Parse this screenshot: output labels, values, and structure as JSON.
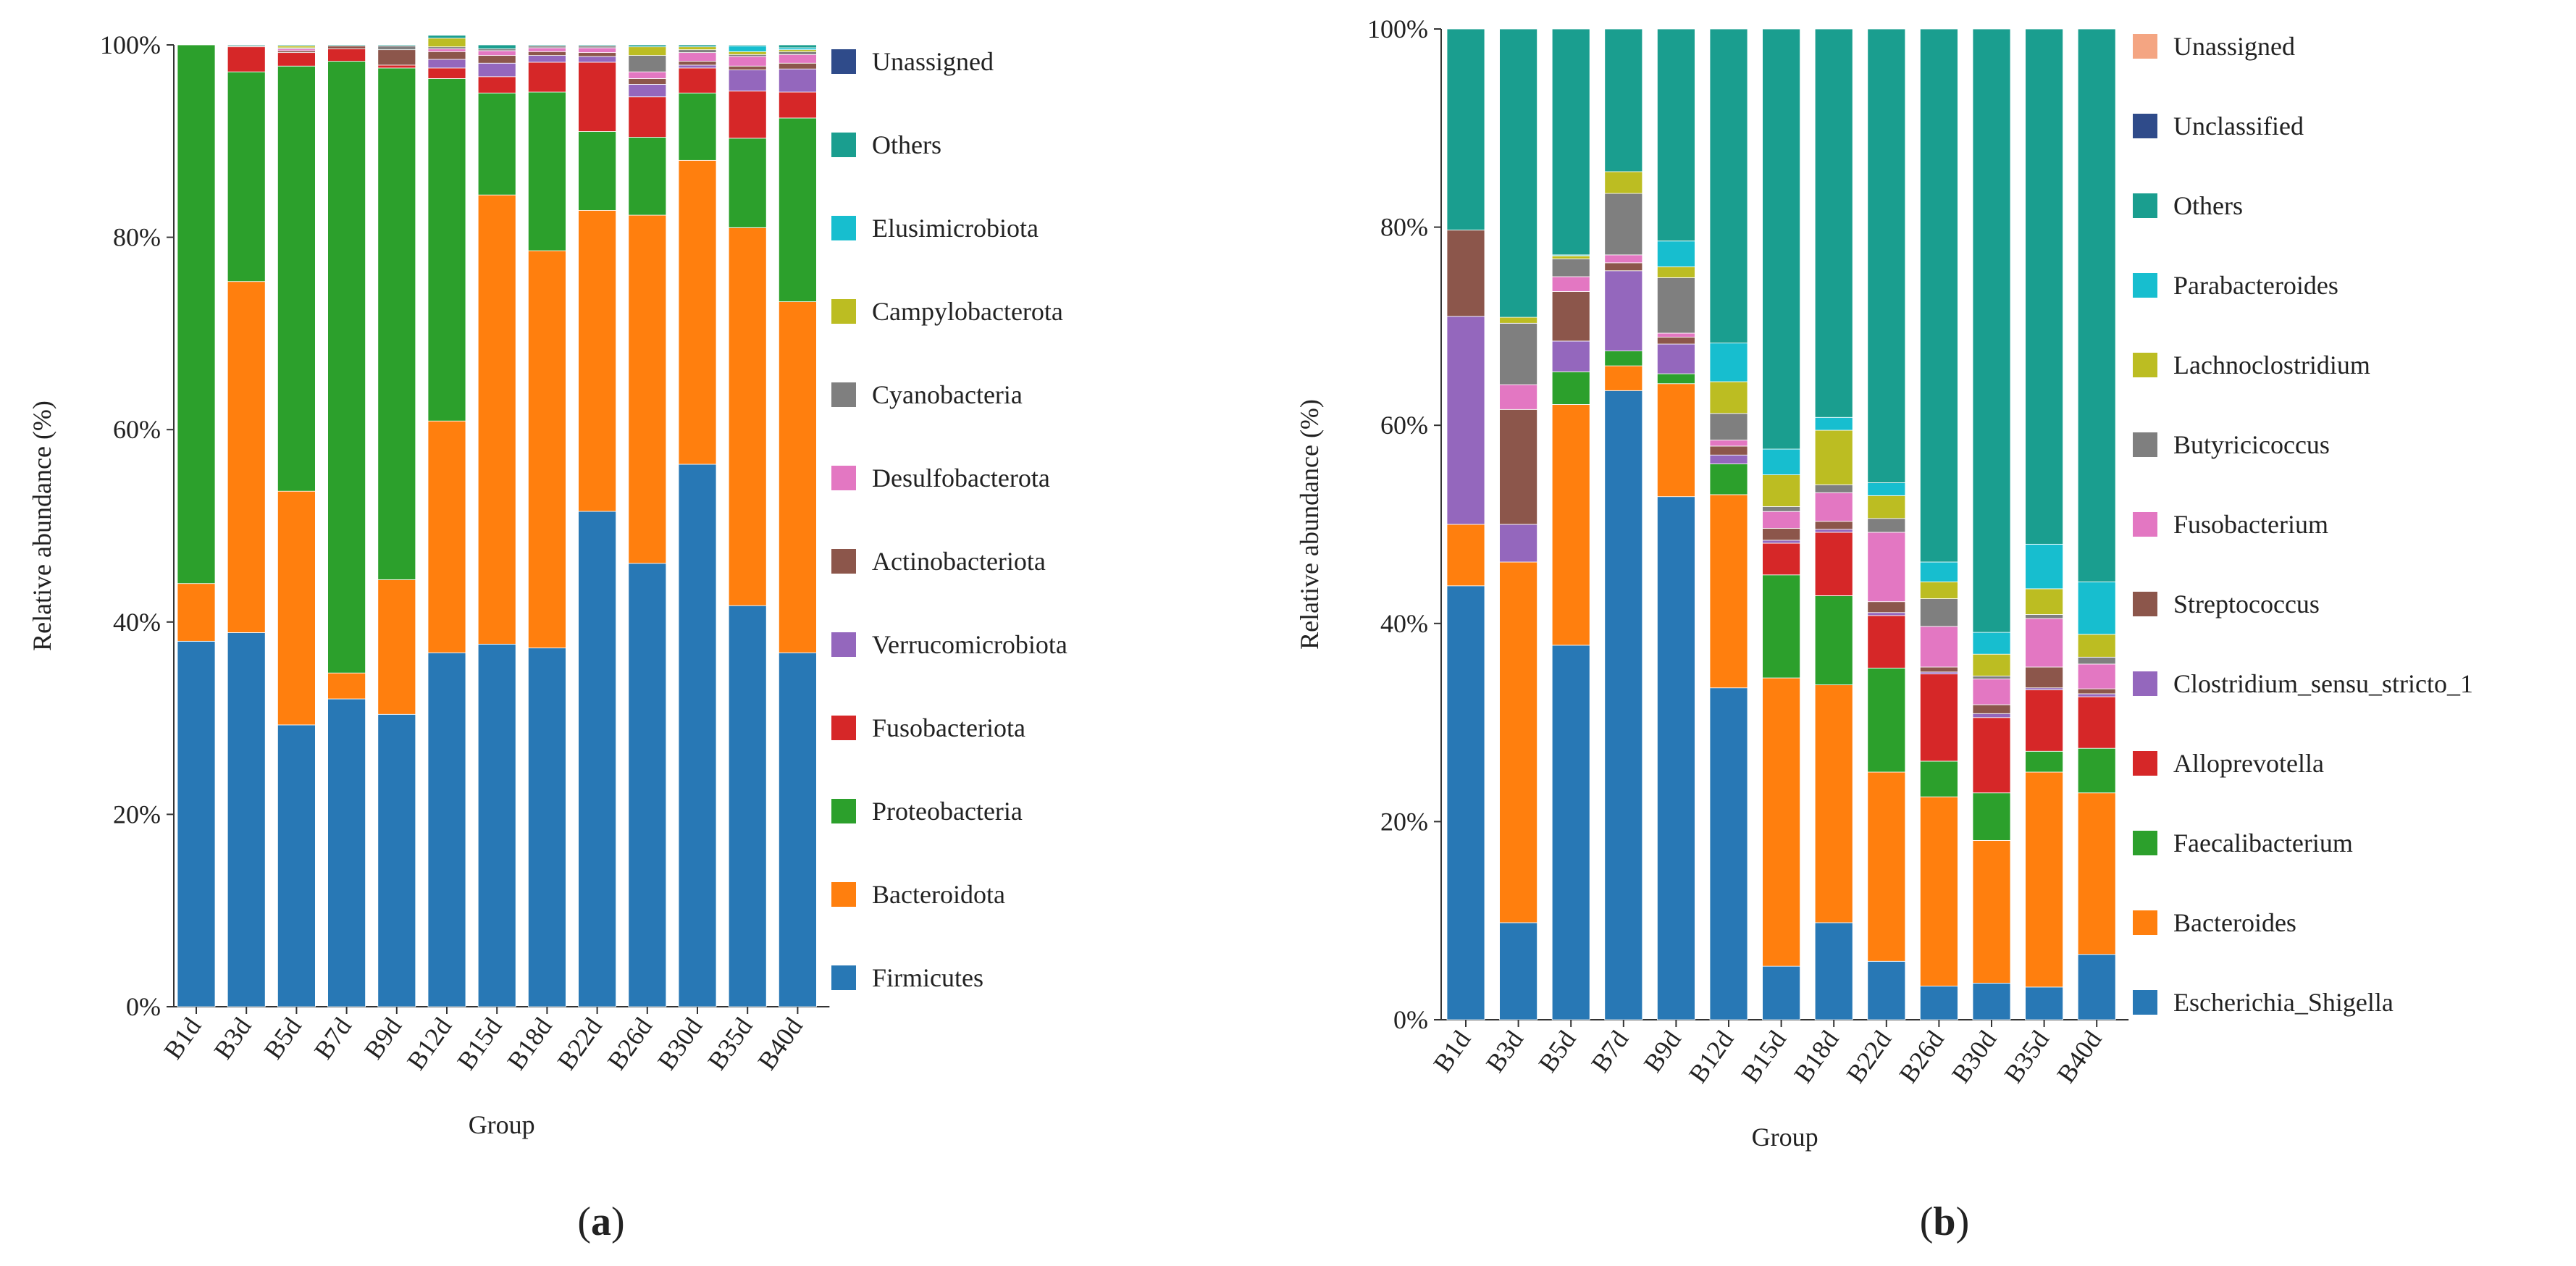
{
  "chart_data": [
    {
      "type": "bar",
      "stacked": true,
      "panel_label": "(a)",
      "panel_letter": "a",
      "xlabel": "Group",
      "ylabel": "Relative abundance (%)",
      "ylim": [
        0,
        100
      ],
      "yticks": [
        "0%",
        "20%",
        "40%",
        "60%",
        "80%",
        "100%"
      ],
      "categories": [
        "B1d",
        "B3d",
        "B5d",
        "B7d",
        "B9d",
        "B12d",
        "B15d",
        "B18d",
        "B22d",
        "B26d",
        "B30d",
        "B35d",
        "B40d"
      ],
      "series": [
        {
          "name": "Firmicutes",
          "color": "#2878b5",
          "values": [
            38,
            38.9,
            29.3,
            32,
            30.4,
            36.8,
            37.7,
            37.3,
            51.5,
            46.1,
            56.4,
            41.7,
            36.8
          ]
        },
        {
          "name": "Bacteroidota",
          "color": "#ff7f0e",
          "values": [
            6,
            36.5,
            24.3,
            2.7,
            14,
            24.1,
            46.7,
            41.3,
            31.3,
            36.2,
            31.6,
            39.3,
            36.5
          ]
        },
        {
          "name": "Proteobacteria",
          "color": "#2ca02c",
          "values": [
            56,
            21.8,
            44.2,
            63.6,
            53.2,
            35.6,
            10.6,
            16.5,
            8.2,
            8.1,
            7,
            9.3,
            19.1
          ]
        },
        {
          "name": "Fusobacteriota",
          "color": "#d62728",
          "values": [
            0,
            2.6,
            1.4,
            1.3,
            0.3,
            1.1,
            1.7,
            3.1,
            7.2,
            4.2,
            2.6,
            4.9,
            2.7
          ]
        },
        {
          "name": "Verrucomicrobiota",
          "color": "#9467bd",
          "values": [
            0,
            0,
            0,
            0,
            0,
            0.9,
            1.4,
            0.7,
            0.6,
            1.3,
            0.3,
            2.2,
            2.4
          ]
        },
        {
          "name": "Actinobacteriota",
          "color": "#8c564b",
          "values": [
            0,
            0.1,
            0.2,
            0.3,
            1.6,
            0.8,
            0.8,
            0.4,
            0.4,
            0.6,
            0.4,
            0.4,
            0.6
          ]
        },
        {
          "name": "Desulfobacterota",
          "color": "#e377c2",
          "values": [
            0,
            0,
            0.2,
            0,
            0,
            0.3,
            0.5,
            0.4,
            0.5,
            0.7,
            0.9,
            1,
            0.9
          ]
        },
        {
          "name": "Cyanobacteria",
          "color": "#7f7f7f",
          "values": [
            0,
            0,
            0.1,
            0,
            0.4,
            0.2,
            0.2,
            0.2,
            0.2,
            1.7,
            0.3,
            0.2,
            0.3
          ]
        },
        {
          "name": "Campylobacterota",
          "color": "#bcbd22",
          "values": [
            0,
            0,
            0.2,
            0,
            0,
            0.9,
            0,
            0,
            0,
            0.9,
            0.3,
            0.3,
            0.2
          ]
        },
        {
          "name": "Elusimicrobiota",
          "color": "#17becf",
          "values": [
            0,
            0,
            0,
            0,
            0,
            0,
            0,
            0,
            0,
            0,
            0,
            0.6,
            0.2
          ]
        },
        {
          "name": "Others",
          "color": "#1a9e8f",
          "values": [
            0,
            0.1,
            0.1,
            0.1,
            0.1,
            0.3,
            0.4,
            0.1,
            0.1,
            0.2,
            0.2,
            0.1,
            0.3
          ]
        },
        {
          "name": "Unassigned",
          "color": "#2f4b8a",
          "values": [
            0,
            0,
            0,
            0,
            0,
            0,
            0,
            0,
            0,
            0,
            0,
            0,
            0
          ]
        }
      ]
    },
    {
      "type": "bar",
      "stacked": true,
      "panel_label": "(b)",
      "panel_letter": "b",
      "xlabel": "Group",
      "ylabel": "Relative abundance (%)",
      "ylim": [
        0,
        100
      ],
      "yticks": [
        "0%",
        "20%",
        "40%",
        "60%",
        "80%",
        "100%"
      ],
      "categories": [
        "B1d",
        "B3d",
        "B5d",
        "B7d",
        "B9d",
        "B12d",
        "B15d",
        "B18d",
        "B22d",
        "B26d",
        "B30d",
        "B35d",
        "B40d"
      ],
      "series": [
        {
          "name": "Escherichia_Shigella",
          "color": "#2878b5",
          "values": [
            43.8,
            9.8,
            37.8,
            63.5,
            52.8,
            33.5,
            5.4,
            9.8,
            5.9,
            3.4,
            3.7,
            3.3,
            6.6
          ]
        },
        {
          "name": "Bacteroides",
          "color": "#ff7f0e",
          "values": [
            6.2,
            36.4,
            24.3,
            2.5,
            11.4,
            19.5,
            29.1,
            24,
            19.1,
            19.1,
            14.4,
            21.7,
            16.3
          ]
        },
        {
          "name": "Faecalibacterium",
          "color": "#2ca02c",
          "values": [
            0,
            0,
            3.3,
            1.5,
            1,
            3.1,
            10.4,
            9,
            10.5,
            3.6,
            4.8,
            2.1,
            4.5
          ]
        },
        {
          "name": "Alloprevotella",
          "color": "#d62728",
          "values": [
            0,
            0,
            0,
            0,
            0,
            0,
            3.2,
            6.4,
            5.3,
            8.8,
            7.6,
            6.2,
            5.2
          ]
        },
        {
          "name": "Clostridium_sensu_stricto_1",
          "color": "#9467bd",
          "values": [
            21,
            3.8,
            3.1,
            8.1,
            3,
            0.9,
            0.3,
            0.3,
            0.3,
            0.2,
            0.4,
            0.2,
            0.3
          ]
        },
        {
          "name": "Streptococcus",
          "color": "#8c564b",
          "values": [
            8.7,
            11.6,
            5,
            0.8,
            0.7,
            0.9,
            1.2,
            0.8,
            1.1,
            0.5,
            0.9,
            2.1,
            0.5
          ]
        },
        {
          "name": "Fusobacterium",
          "color": "#e377c2",
          "values": [
            0,
            2.5,
            1.5,
            0.8,
            0.4,
            0.6,
            1.7,
            2.9,
            7,
            4.1,
            2.6,
            4.9,
            2.5
          ]
        },
        {
          "name": "Butyricicoccus",
          "color": "#7f7f7f",
          "values": [
            0,
            6.2,
            1.8,
            6.2,
            5.6,
            2.7,
            0.5,
            0.8,
            1.4,
            2.8,
            0.3,
            0.4,
            0.7
          ]
        },
        {
          "name": "Lachnoclostridium",
          "color": "#bcbd22",
          "values": [
            0,
            0.6,
            0.3,
            2.2,
            1.1,
            3.2,
            3.2,
            5.5,
            2.3,
            1.7,
            2.2,
            2.6,
            2.3
          ]
        },
        {
          "name": "Parabacteroides",
          "color": "#17becf",
          "values": [
            0,
            0,
            0.1,
            0,
            2.6,
            3.9,
            2.6,
            1.3,
            1.3,
            2,
            2.2,
            4.5,
            5.3
          ]
        },
        {
          "name": "Others",
          "color": "#1a9e8f",
          "values": [
            20.3,
            29.1,
            22.8,
            14.4,
            21.4,
            31.7,
            42.4,
            39.2,
            45.8,
            53.8,
            60.9,
            52,
            55.8
          ]
        },
        {
          "name": "Unclassified",
          "color": "#2f4b8a",
          "values": [
            0,
            0,
            0,
            0,
            0,
            0,
            0,
            0,
            0,
            0,
            0,
            0,
            0
          ]
        },
        {
          "name": "Unassigned",
          "color": "#f4a582",
          "values": [
            0,
            0,
            0,
            0,
            0,
            0,
            0,
            0,
            0,
            0,
            0,
            0,
            0
          ]
        }
      ]
    }
  ]
}
